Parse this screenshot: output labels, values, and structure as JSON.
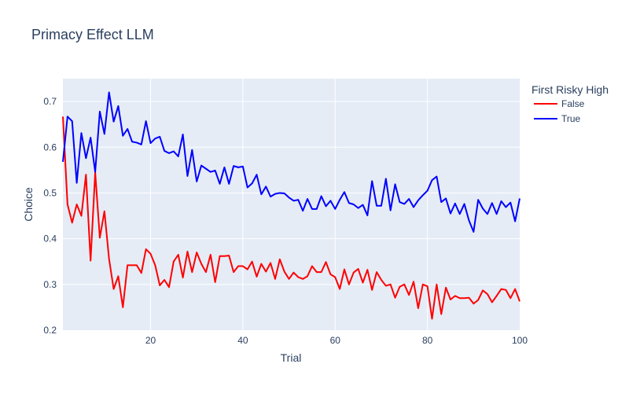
{
  "chart_data": {
    "type": "line",
    "title": "Primacy Effect LLM",
    "xlabel": "Trial",
    "ylabel": "Choice",
    "xlim": [
      1,
      100
    ],
    "ylim": [
      0.2,
      0.75
    ],
    "x_ticks": [
      20,
      40,
      60,
      80,
      100
    ],
    "y_ticks": [
      0.2,
      0.3,
      0.4,
      0.5,
      0.6,
      0.7
    ],
    "x_tick_labels": [
      "20",
      "40",
      "60",
      "80",
      "100"
    ],
    "y_tick_labels": [
      "0.2",
      "0.3",
      "0.4",
      "0.5",
      "0.6",
      "0.7"
    ],
    "grid": true,
    "legend": {
      "title": "First Risky High",
      "position": "top-right"
    },
    "x": [
      1,
      2,
      3,
      4,
      5,
      6,
      7,
      8,
      9,
      10,
      11,
      12,
      13,
      14,
      15,
      16,
      17,
      18,
      19,
      20,
      21,
      22,
      23,
      24,
      25,
      26,
      27,
      28,
      29,
      30,
      31,
      32,
      33,
      34,
      35,
      36,
      37,
      38,
      39,
      40,
      41,
      42,
      43,
      44,
      45,
      46,
      47,
      48,
      49,
      50,
      51,
      52,
      53,
      54,
      55,
      56,
      57,
      58,
      59,
      60,
      61,
      62,
      63,
      64,
      65,
      66,
      67,
      68,
      69,
      70,
      71,
      72,
      73,
      74,
      75,
      76,
      77,
      78,
      79,
      80,
      81,
      82,
      83,
      84,
      85,
      86,
      87,
      88,
      89,
      90,
      91,
      92,
      93,
      94,
      95,
      96,
      97,
      98,
      99,
      100
    ],
    "series": [
      {
        "name": "False",
        "color": "#ff0000",
        "values": [
          0.667,
          0.475,
          0.435,
          0.475,
          0.45,
          0.54,
          0.352,
          0.545,
          0.402,
          0.46,
          0.356,
          0.29,
          0.318,
          0.25,
          0.342,
          0.342,
          0.342,
          0.325,
          0.377,
          0.367,
          0.342,
          0.298,
          0.31,
          0.294,
          0.35,
          0.365,
          0.315,
          0.372,
          0.327,
          0.37,
          0.345,
          0.327,
          0.365,
          0.305,
          0.362,
          0.362,
          0.363,
          0.327,
          0.34,
          0.34,
          0.333,
          0.35,
          0.317,
          0.345,
          0.328,
          0.347,
          0.312,
          0.355,
          0.328,
          0.312,
          0.326,
          0.316,
          0.312,
          0.318,
          0.34,
          0.327,
          0.327,
          0.349,
          0.322,
          0.316,
          0.29,
          0.333,
          0.3,
          0.326,
          0.334,
          0.304,
          0.332,
          0.288,
          0.327,
          0.31,
          0.297,
          0.3,
          0.271,
          0.295,
          0.3,
          0.277,
          0.306,
          0.248,
          0.3,
          0.296,
          0.225,
          0.3,
          0.235,
          0.293,
          0.267,
          0.275,
          0.27,
          0.27,
          0.271,
          0.258,
          0.266,
          0.287,
          0.279,
          0.261,
          0.275,
          0.29,
          0.288,
          0.27,
          0.29,
          0.263
        ]
      },
      {
        "name": "True",
        "color": "#0000ff",
        "values": [
          0.568,
          0.667,
          0.657,
          0.522,
          0.631,
          0.576,
          0.621,
          0.546,
          0.678,
          0.629,
          0.72,
          0.656,
          0.69,
          0.625,
          0.64,
          0.612,
          0.61,
          0.606,
          0.657,
          0.609,
          0.619,
          0.623,
          0.592,
          0.587,
          0.591,
          0.58,
          0.628,
          0.537,
          0.594,
          0.525,
          0.56,
          0.553,
          0.546,
          0.549,
          0.52,
          0.556,
          0.52,
          0.559,
          0.556,
          0.558,
          0.512,
          0.521,
          0.54,
          0.497,
          0.514,
          0.492,
          0.498,
          0.5,
          0.499,
          0.49,
          0.483,
          0.485,
          0.461,
          0.487,
          0.465,
          0.465,
          0.493,
          0.471,
          0.483,
          0.465,
          0.485,
          0.502,
          0.478,
          0.475,
          0.467,
          0.474,
          0.451,
          0.526,
          0.472,
          0.472,
          0.531,
          0.462,
          0.519,
          0.48,
          0.476,
          0.487,
          0.469,
          0.484,
          0.495,
          0.505,
          0.528,
          0.536,
          0.48,
          0.488,
          0.455,
          0.477,
          0.454,
          0.476,
          0.44,
          0.415,
          0.485,
          0.466,
          0.454,
          0.478,
          0.454,
          0.482,
          0.469,
          0.479,
          0.438,
          0.488
        ]
      }
    ]
  }
}
